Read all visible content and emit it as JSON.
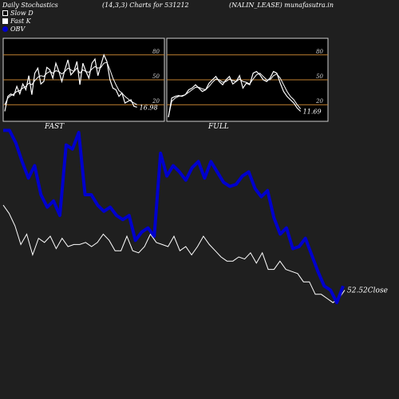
{
  "header": {
    "title": "Daily Stochastics",
    "params": "(14,3,3) Charts for 531212",
    "company": "(NALIN_LEASE) munafasutra.in"
  },
  "legend": {
    "slow_d": "Slow  D",
    "fast_k": "Fast K",
    "obv": "OBV"
  },
  "colors": {
    "background": "#1f1f1f",
    "obv": "#0000cc",
    "lines": "#ffffff",
    "bands": "#c08030",
    "panel": "#000000"
  },
  "chart_data": [
    {
      "type": "line",
      "panel": "fast stochastic",
      "title": "FAST",
      "ylim": [
        0,
        100
      ],
      "yticks": [
        20,
        50,
        80
      ],
      "bands": [
        20,
        50,
        80
      ],
      "last_value_label": "16.98",
      "series": [
        {
          "name": "Fast K",
          "values": [
            12,
            30,
            33,
            31,
            42,
            33,
            45,
            38,
            55,
            32,
            58,
            64,
            45,
            48,
            65,
            62,
            52,
            70,
            60,
            48,
            62,
            74,
            56,
            60,
            72,
            44,
            70,
            60,
            52,
            70,
            75,
            55,
            68,
            80,
            72,
            50,
            40,
            38,
            30,
            34,
            22,
            24,
            26,
            18,
            17
          ]
        },
        {
          "name": "Slow  D",
          "values": [
            20,
            28,
            31,
            33,
            36,
            37,
            40,
            42,
            46,
            44,
            49,
            53,
            55,
            54,
            58,
            60,
            58,
            61,
            60,
            57,
            60,
            64,
            62,
            60,
            64,
            58,
            62,
            60,
            59,
            63,
            66,
            64,
            65,
            70,
            71,
            62,
            52,
            44,
            37,
            34,
            30,
            27,
            24,
            22,
            20
          ]
        }
      ]
    },
    {
      "type": "line",
      "panel": "full stochastic",
      "title": "FULL",
      "ylim": [
        0,
        100
      ],
      "yticks": [
        20,
        50,
        80
      ],
      "bands": [
        20,
        50,
        80
      ],
      "last_value_label": "11.69",
      "series": [
        {
          "name": "Fast K",
          "values": [
            5,
            28,
            30,
            31,
            30,
            32,
            38,
            40,
            44,
            40,
            36,
            38,
            46,
            50,
            54,
            48,
            44,
            50,
            54,
            45,
            48,
            55,
            40,
            46,
            44,
            58,
            60,
            56,
            50,
            48,
            52,
            60,
            58,
            46,
            36,
            30,
            26,
            22,
            16,
            12
          ]
        },
        {
          "name": "Slow  D",
          "values": [
            5,
            24,
            28,
            30,
            31,
            32,
            35,
            38,
            41,
            41,
            39,
            38,
            42,
            47,
            51,
            50,
            47,
            48,
            51,
            49,
            48,
            51,
            48,
            47,
            45,
            51,
            56,
            58,
            54,
            50,
            50,
            55,
            57,
            52,
            44,
            36,
            30,
            26,
            20,
            15
          ]
        }
      ]
    },
    {
      "type": "line",
      "panel": "price and OBV",
      "close_label": "52.52Close",
      "series": [
        {
          "name": "OBV",
          "values": [
            91,
            91,
            85,
            76,
            68,
            74,
            60,
            54,
            57,
            50,
            84,
            82,
            90,
            60,
            60,
            55,
            52,
            54,
            50,
            48,
            50,
            38,
            42,
            44,
            40,
            80,
            69,
            74,
            71,
            67,
            73,
            76,
            68,
            76,
            71,
            66,
            64,
            65,
            69,
            71,
            63,
            59,
            62,
            49,
            41,
            44,
            34,
            35,
            39,
            31,
            23,
            16,
            14,
            8,
            16
          ]
        },
        {
          "name": "Close",
          "values": [
            55,
            51,
            45,
            36,
            41,
            31,
            39,
            37,
            40,
            34,
            39,
            35,
            36,
            36,
            37,
            35,
            37,
            41,
            38,
            33,
            33,
            40,
            33,
            32,
            35,
            41,
            37,
            36,
            35,
            40,
            33,
            35,
            31,
            35,
            40,
            36,
            33,
            30,
            28,
            28,
            30,
            29,
            32,
            27,
            32,
            24,
            24,
            28,
            24,
            23,
            22,
            18,
            18,
            12,
            12,
            10,
            8,
            10,
            14
          ]
        }
      ]
    }
  ]
}
